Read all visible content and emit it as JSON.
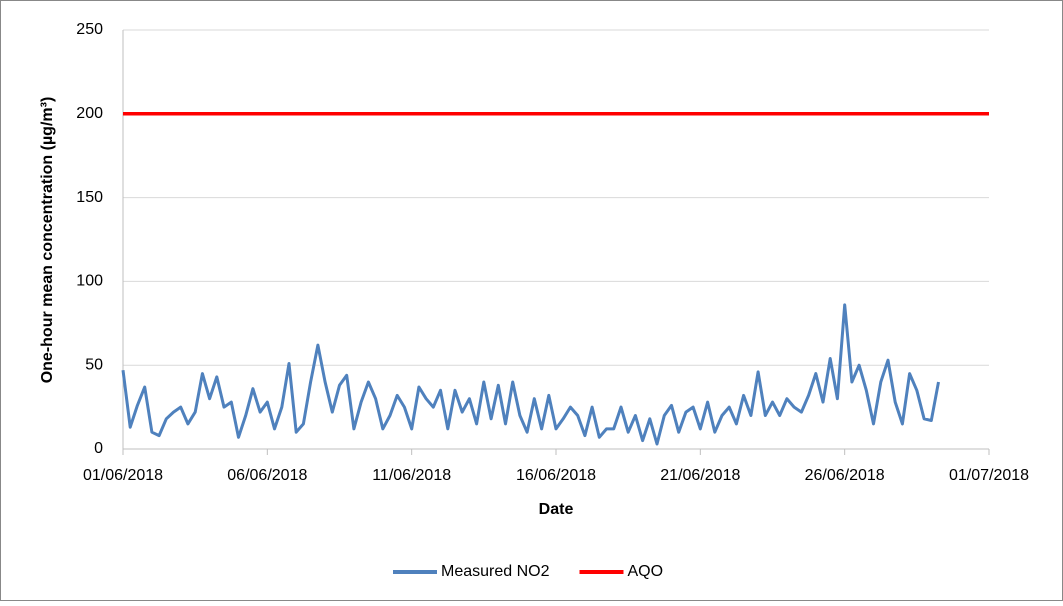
{
  "chart_data": {
    "type": "line",
    "xlabel": "Date",
    "ylabel": "One-hour mean concentration (µg/m³)",
    "xlim": [
      "2018-06-01T00:00",
      "2018-07-01T00:00"
    ],
    "xticks": [
      {
        "value": "2018-06-01T00:00",
        "label": "01/06/2018"
      },
      {
        "value": "2018-06-06T00:00",
        "label": "06/06/2018"
      },
      {
        "value": "2018-06-11T00:00",
        "label": "11/06/2018"
      },
      {
        "value": "2018-06-16T00:00",
        "label": "16/06/2018"
      },
      {
        "value": "2018-06-21T00:00",
        "label": "21/06/2018"
      },
      {
        "value": "2018-06-26T00:00",
        "label": "26/06/2018"
      },
      {
        "value": "2018-07-01T00:00",
        "label": "01/07/2018"
      }
    ],
    "ylim": [
      0,
      250
    ],
    "yticks": [
      0,
      50,
      100,
      150,
      200,
      250
    ],
    "grid": true,
    "legend": "bottom",
    "series": [
      {
        "name": "Measured NO2",
        "color": "#4f81bd",
        "x": [
          "2018-06-01T00:00",
          "2018-06-01T06:00",
          "2018-06-01T12:00",
          "2018-06-01T18:00",
          "2018-06-02T00:00",
          "2018-06-02T06:00",
          "2018-06-02T12:00",
          "2018-06-02T18:00",
          "2018-06-03T00:00",
          "2018-06-03T06:00",
          "2018-06-03T12:00",
          "2018-06-03T18:00",
          "2018-06-04T00:00",
          "2018-06-04T06:00",
          "2018-06-04T12:00",
          "2018-06-04T18:00",
          "2018-06-05T00:00",
          "2018-06-05T06:00",
          "2018-06-05T12:00",
          "2018-06-05T18:00",
          "2018-06-06T00:00",
          "2018-06-06T06:00",
          "2018-06-06T12:00",
          "2018-06-06T18:00",
          "2018-06-07T00:00",
          "2018-06-07T06:00",
          "2018-06-07T12:00",
          "2018-06-07T18:00",
          "2018-06-08T00:00",
          "2018-06-08T06:00",
          "2018-06-08T12:00",
          "2018-06-08T18:00",
          "2018-06-09T00:00",
          "2018-06-09T06:00",
          "2018-06-09T12:00",
          "2018-06-09T18:00",
          "2018-06-10T00:00",
          "2018-06-10T06:00",
          "2018-06-10T12:00",
          "2018-06-10T18:00",
          "2018-06-11T00:00",
          "2018-06-11T06:00",
          "2018-06-11T12:00",
          "2018-06-11T18:00",
          "2018-06-12T00:00",
          "2018-06-12T06:00",
          "2018-06-12T12:00",
          "2018-06-12T18:00",
          "2018-06-13T00:00",
          "2018-06-13T06:00",
          "2018-06-13T12:00",
          "2018-06-13T18:00",
          "2018-06-14T00:00",
          "2018-06-14T06:00",
          "2018-06-14T12:00",
          "2018-06-14T18:00",
          "2018-06-15T00:00",
          "2018-06-15T06:00",
          "2018-06-15T12:00",
          "2018-06-15T18:00",
          "2018-06-16T00:00",
          "2018-06-16T06:00",
          "2018-06-16T12:00",
          "2018-06-16T18:00",
          "2018-06-17T00:00",
          "2018-06-17T06:00",
          "2018-06-17T12:00",
          "2018-06-17T18:00",
          "2018-06-18T00:00",
          "2018-06-18T06:00",
          "2018-06-18T12:00",
          "2018-06-18T18:00",
          "2018-06-19T00:00",
          "2018-06-19T06:00",
          "2018-06-19T12:00",
          "2018-06-19T18:00",
          "2018-06-20T00:00",
          "2018-06-20T06:00",
          "2018-06-20T12:00",
          "2018-06-20T18:00",
          "2018-06-21T00:00",
          "2018-06-21T06:00",
          "2018-06-21T12:00",
          "2018-06-21T18:00",
          "2018-06-22T00:00",
          "2018-06-22T06:00",
          "2018-06-22T12:00",
          "2018-06-22T18:00",
          "2018-06-23T00:00",
          "2018-06-23T06:00",
          "2018-06-23T12:00",
          "2018-06-23T18:00",
          "2018-06-24T00:00",
          "2018-06-24T06:00",
          "2018-06-24T12:00",
          "2018-06-24T18:00",
          "2018-06-25T00:00",
          "2018-06-25T06:00",
          "2018-06-25T12:00",
          "2018-06-25T18:00",
          "2018-06-26T00:00",
          "2018-06-26T06:00",
          "2018-06-26T12:00",
          "2018-06-26T18:00",
          "2018-06-27T00:00",
          "2018-06-27T06:00",
          "2018-06-27T12:00",
          "2018-06-27T18:00",
          "2018-06-28T00:00",
          "2018-06-28T06:00",
          "2018-06-28T12:00",
          "2018-06-28T18:00",
          "2018-06-29T00:00",
          "2018-06-29T06:00"
        ],
        "values": [
          47,
          13,
          26,
          37,
          10,
          8,
          18,
          22,
          25,
          15,
          22,
          45,
          30,
          43,
          25,
          28,
          7,
          20,
          36,
          22,
          28,
          12,
          25,
          51,
          10,
          15,
          40,
          62,
          40,
          22,
          38,
          44,
          12,
          28,
          40,
          30,
          12,
          20,
          32,
          25,
          12,
          37,
          30,
          25,
          35,
          12,
          35,
          22,
          30,
          15,
          40,
          18,
          38,
          15,
          40,
          20,
          10,
          30,
          12,
          32,
          12,
          18,
          25,
          20,
          8,
          25,
          7,
          12,
          12,
          25,
          10,
          20,
          5,
          18,
          3,
          20,
          26,
          10,
          22,
          25,
          12,
          28,
          10,
          20,
          25,
          15,
          32,
          20,
          46,
          20,
          28,
          20,
          30,
          25,
          22,
          32,
          45,
          28,
          54,
          30,
          86,
          40,
          50,
          35,
          15,
          40,
          53,
          28,
          15,
          45,
          35,
          18,
          17,
          40
        ]
      },
      {
        "name": "AQO",
        "color": "#ff0000",
        "x": [
          "2018-06-01T00:00",
          "2018-07-01T00:00"
        ],
        "values": [
          200,
          200
        ]
      }
    ]
  }
}
